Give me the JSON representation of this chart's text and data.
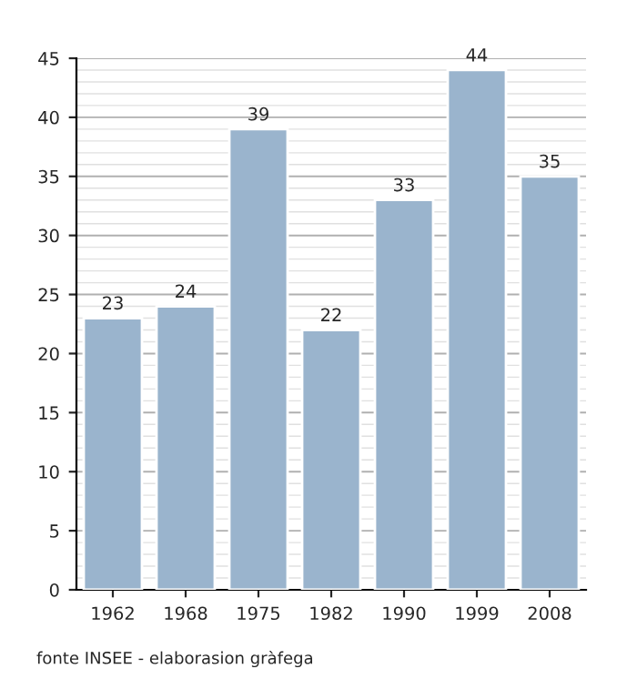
{
  "chart_data": {
    "type": "bar",
    "categories": [
      "1962",
      "1968",
      "1975",
      "1982",
      "1990",
      "1999",
      "2008"
    ],
    "values": [
      23,
      24,
      39,
      22,
      33,
      44,
      35
    ],
    "color": "#9ab4cd",
    "ylim": [
      0,
      45
    ],
    "yticks": [
      0,
      5,
      10,
      15,
      20,
      25,
      30,
      35,
      40,
      45
    ],
    "grid": "y",
    "data_labels": true,
    "annotations": [
      "fonte INSEE - elaborasion gràfega"
    ]
  }
}
